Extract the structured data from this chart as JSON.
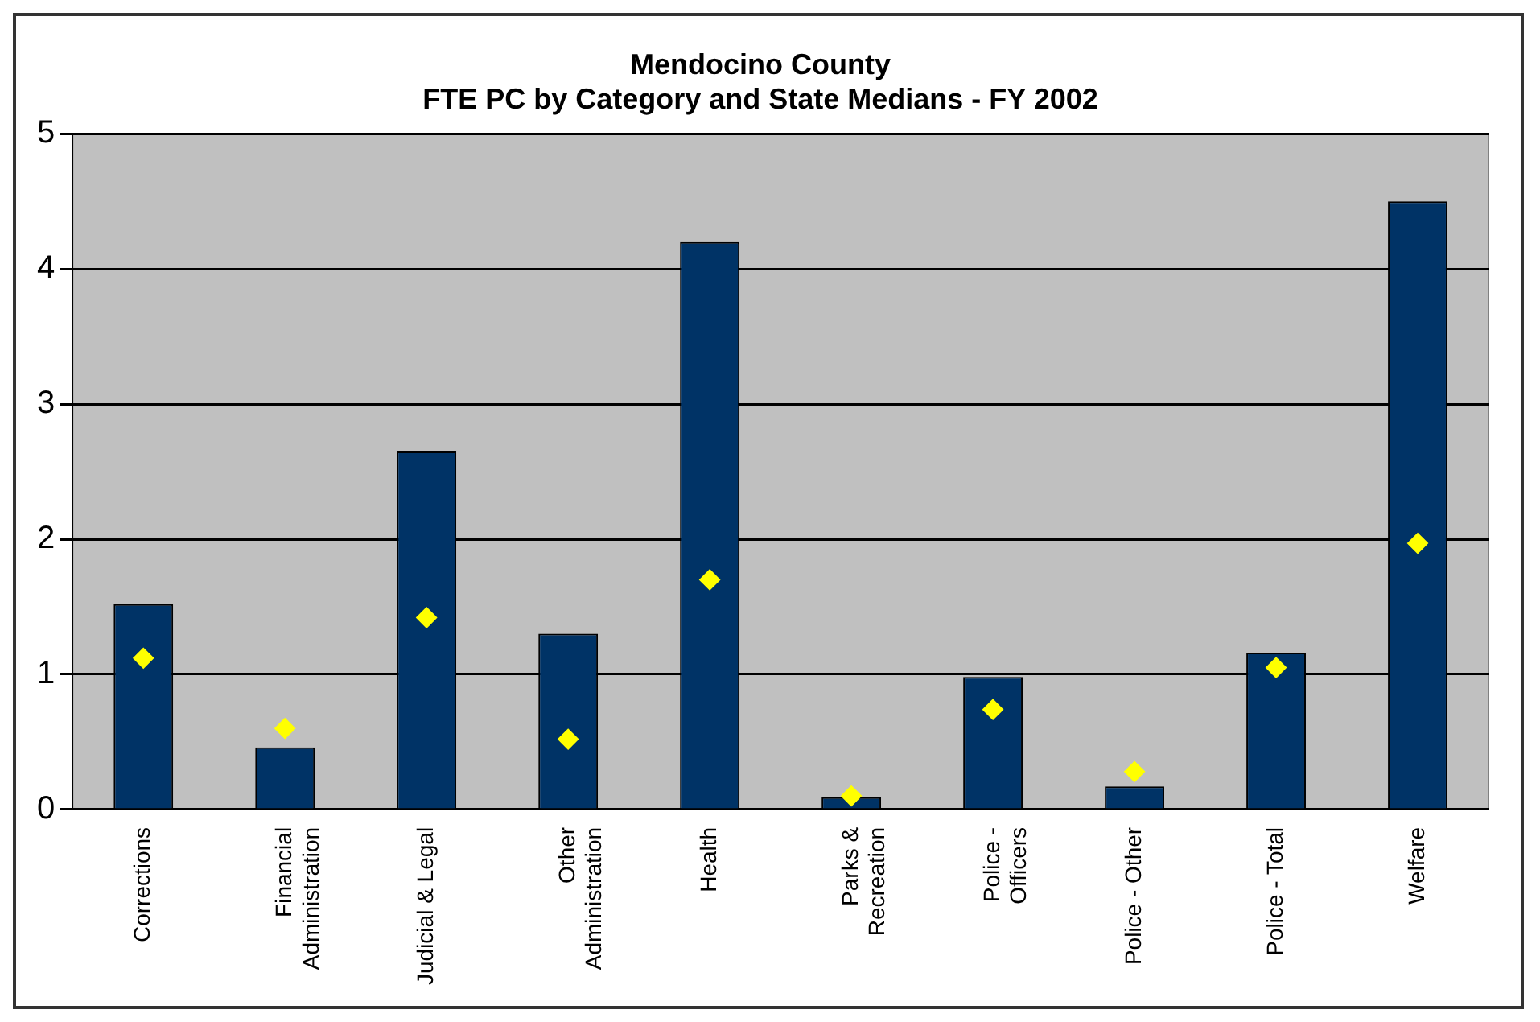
{
  "chart_data": {
    "type": "bar",
    "title": "Mendocino County",
    "subtitle": "FTE PC by Category and State Medians - FY 2002",
    "categories": [
      "Corrections",
      "Financial\nAdministration",
      "Judicial & Legal",
      "Other\nAdministration",
      "Health",
      "Parks &\nRecreation",
      "Police -\nOfficers",
      "Police - Other",
      "Police - Total",
      "Welfare"
    ],
    "series": [
      {
        "color": "#003366",
        "values": [
          1.52,
          0.46,
          2.65,
          1.3,
          4.2,
          0.09,
          0.98,
          0.17,
          1.16,
          4.5
        ]
      },
      {
        "type": "scatter",
        "color": "#ffff00",
        "marker": "diamond",
        "x": [
          "Corrections",
          "Financial\nAdministration",
          "Judicial & Legal",
          "Other\nAdministration",
          "Health",
          "Parks &\nRecreation",
          "Police -\nOfficers",
          "Police - Other",
          "Police - Total",
          "Welfare"
        ],
        "values": [
          1.12,
          0.6,
          1.42,
          0.52,
          1.7,
          0.1,
          0.74,
          0.28,
          1.05,
          1.97
        ]
      }
    ],
    "ylim": [
      0,
      5
    ],
    "yticks": [
      0,
      1,
      2,
      3,
      4,
      5
    ],
    "grid": "y",
    "legend": false
  }
}
